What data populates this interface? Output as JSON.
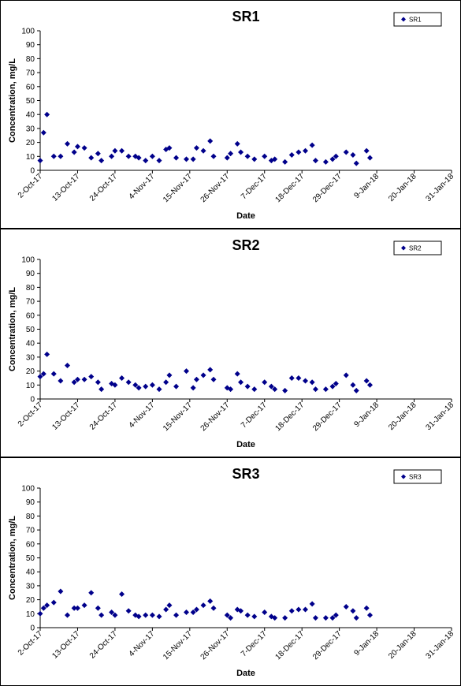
{
  "colors": {
    "marker": "#00008B",
    "axis": "#000000",
    "background": "#FFFFFF"
  },
  "chart_data": [
    {
      "type": "scatter",
      "title": "SR1",
      "xlabel": "Date",
      "ylabel": "Concentration, mg/L",
      "ylim": [
        0,
        100
      ],
      "yticks": [
        "0",
        "10",
        "20",
        "30",
        "40",
        "50",
        "60",
        "70",
        "80",
        "90",
        "100"
      ],
      "xlim": [
        "2017-10-02",
        "2018-01-31"
      ],
      "xticks": [
        "2-Oct-17",
        "13-Oct-17",
        "24-Oct-17",
        "4-Nov-17",
        "15-Nov-17",
        "26-Nov-17",
        "7-Dec-17",
        "18-Dec-17",
        "29-Dec-17",
        "9-Jan-18",
        "20-Jan-18",
        "31-Jan-18"
      ],
      "grid": false,
      "legend_position": "top-right",
      "series": [
        {
          "name": "SR1",
          "marker": "diamond",
          "points": [
            [
              "2017-10-02",
              7
            ],
            [
              "2017-10-03",
              27
            ],
            [
              "2017-10-04",
              40
            ],
            [
              "2017-10-06",
              10
            ],
            [
              "2017-10-08",
              10
            ],
            [
              "2017-10-10",
              19
            ],
            [
              "2017-10-12",
              13
            ],
            [
              "2017-10-13",
              17
            ],
            [
              "2017-10-15",
              16
            ],
            [
              "2017-10-17",
              9
            ],
            [
              "2017-10-19",
              12
            ],
            [
              "2017-10-20",
              7
            ],
            [
              "2017-10-23",
              10
            ],
            [
              "2017-10-24",
              14
            ],
            [
              "2017-10-26",
              14
            ],
            [
              "2017-10-28",
              10
            ],
            [
              "2017-10-30",
              10
            ],
            [
              "2017-10-31",
              9
            ],
            [
              "2017-11-02",
              7
            ],
            [
              "2017-11-04",
              10
            ],
            [
              "2017-11-06",
              7
            ],
            [
              "2017-11-08",
              15
            ],
            [
              "2017-11-09",
              16
            ],
            [
              "2017-11-11",
              9
            ],
            [
              "2017-11-14",
              8
            ],
            [
              "2017-11-16",
              8
            ],
            [
              "2017-11-17",
              16
            ],
            [
              "2017-11-19",
              14
            ],
            [
              "2017-11-21",
              21
            ],
            [
              "2017-11-22",
              10
            ],
            [
              "2017-11-26",
              9
            ],
            [
              "2017-11-27",
              12
            ],
            [
              "2017-11-29",
              19
            ],
            [
              "2017-11-30",
              13
            ],
            [
              "2017-12-02",
              10
            ],
            [
              "2017-12-04",
              8
            ],
            [
              "2017-12-07",
              10
            ],
            [
              "2017-12-09",
              7
            ],
            [
              "2017-12-10",
              8
            ],
            [
              "2017-12-13",
              6
            ],
            [
              "2017-12-15",
              11
            ],
            [
              "2017-12-17",
              13
            ],
            [
              "2017-12-19",
              14
            ],
            [
              "2017-12-21",
              18
            ],
            [
              "2017-12-22",
              7
            ],
            [
              "2017-12-25",
              6
            ],
            [
              "2017-12-27",
              8
            ],
            [
              "2017-12-28",
              10
            ],
            [
              "2017-12-31",
              13
            ],
            [
              "2018-01-02",
              11
            ],
            [
              "2018-01-03",
              5
            ],
            [
              "2018-01-06",
              14
            ],
            [
              "2018-01-07",
              9
            ]
          ]
        }
      ]
    },
    {
      "type": "scatter",
      "title": "SR2",
      "xlabel": "Date",
      "ylabel": "Concentration, mg/L",
      "ylim": [
        0,
        100
      ],
      "yticks": [
        "0",
        "10",
        "20",
        "30",
        "40",
        "50",
        "60",
        "70",
        "80",
        "90",
        "100"
      ],
      "xlim": [
        "2017-10-02",
        "2018-01-31"
      ],
      "xticks": [
        "2-Oct-17",
        "13-Oct-17",
        "24-Oct-17",
        "4-Nov-17",
        "15-Nov-17",
        "26-Nov-17",
        "7-Dec-17",
        "18-Dec-17",
        "29-Dec-17",
        "9-Jan-18",
        "20-Jan-18",
        "31-Jan-18"
      ],
      "grid": false,
      "legend_position": "top-right",
      "series": [
        {
          "name": "SR2",
          "marker": "diamond",
          "points": [
            [
              "2017-10-02",
              16
            ],
            [
              "2017-10-03",
              18
            ],
            [
              "2017-10-04",
              32
            ],
            [
              "2017-10-06",
              18
            ],
            [
              "2017-10-08",
              13
            ],
            [
              "2017-10-10",
              24
            ],
            [
              "2017-10-12",
              12
            ],
            [
              "2017-10-13",
              14
            ],
            [
              "2017-10-15",
              14
            ],
            [
              "2017-10-17",
              16
            ],
            [
              "2017-10-19",
              12
            ],
            [
              "2017-10-20",
              7
            ],
            [
              "2017-10-23",
              11
            ],
            [
              "2017-10-24",
              10
            ],
            [
              "2017-10-26",
              15
            ],
            [
              "2017-10-28",
              12
            ],
            [
              "2017-10-30",
              10
            ],
            [
              "2017-10-31",
              8
            ],
            [
              "2017-11-02",
              9
            ],
            [
              "2017-11-04",
              10
            ],
            [
              "2017-11-06",
              7
            ],
            [
              "2017-11-08",
              12
            ],
            [
              "2017-11-09",
              17
            ],
            [
              "2017-11-11",
              9
            ],
            [
              "2017-11-14",
              20
            ],
            [
              "2017-11-16",
              8
            ],
            [
              "2017-11-17",
              14
            ],
            [
              "2017-11-19",
              17
            ],
            [
              "2017-11-21",
              21
            ],
            [
              "2017-11-22",
              14
            ],
            [
              "2017-11-26",
              8
            ],
            [
              "2017-11-27",
              7
            ],
            [
              "2017-11-29",
              18
            ],
            [
              "2017-11-30",
              12
            ],
            [
              "2017-12-02",
              9
            ],
            [
              "2017-12-04",
              7
            ],
            [
              "2017-12-07",
              12
            ],
            [
              "2017-12-09",
              9
            ],
            [
              "2017-12-10",
              7
            ],
            [
              "2017-12-13",
              6
            ],
            [
              "2017-12-15",
              15
            ],
            [
              "2017-12-17",
              15
            ],
            [
              "2017-12-19",
              13
            ],
            [
              "2017-12-21",
              12
            ],
            [
              "2017-12-22",
              7
            ],
            [
              "2017-12-25",
              7
            ],
            [
              "2017-12-27",
              9
            ],
            [
              "2017-12-28",
              11
            ],
            [
              "2017-12-31",
              17
            ],
            [
              "2018-01-02",
              10
            ],
            [
              "2018-01-03",
              6
            ],
            [
              "2018-01-06",
              13
            ],
            [
              "2018-01-07",
              10
            ]
          ]
        }
      ]
    },
    {
      "type": "scatter",
      "title": "SR3",
      "xlabel": "Date",
      "ylabel": "Concentration, mg/L",
      "ylim": [
        0,
        100
      ],
      "yticks": [
        "0",
        "10",
        "20",
        "30",
        "40",
        "50",
        "60",
        "70",
        "80",
        "90",
        "100"
      ],
      "xlim": [
        "2017-10-02",
        "2018-01-31"
      ],
      "xticks": [
        "2-Oct-17",
        "13-Oct-17",
        "24-Oct-17",
        "4-Nov-17",
        "15-Nov-17",
        "26-Nov-17",
        "7-Dec-17",
        "18-Dec-17",
        "29-Dec-17",
        "9-Jan-18",
        "20-Jan-18",
        "31-Jan-18"
      ],
      "grid": false,
      "legend_position": "top-right",
      "series": [
        {
          "name": "SR3",
          "marker": "diamond",
          "points": [
            [
              "2017-10-02",
              10
            ],
            [
              "2017-10-03",
              14
            ],
            [
              "2017-10-04",
              16
            ],
            [
              "2017-10-06",
              18
            ],
            [
              "2017-10-08",
              26
            ],
            [
              "2017-10-10",
              9
            ],
            [
              "2017-10-12",
              14
            ],
            [
              "2017-10-13",
              14
            ],
            [
              "2017-10-15",
              16
            ],
            [
              "2017-10-17",
              25
            ],
            [
              "2017-10-19",
              14
            ],
            [
              "2017-10-20",
              9
            ],
            [
              "2017-10-23",
              11
            ],
            [
              "2017-10-24",
              9
            ],
            [
              "2017-10-26",
              24
            ],
            [
              "2017-10-28",
              12
            ],
            [
              "2017-10-30",
              9
            ],
            [
              "2017-10-31",
              8
            ],
            [
              "2017-11-02",
              9
            ],
            [
              "2017-11-04",
              9
            ],
            [
              "2017-11-06",
              8
            ],
            [
              "2017-11-08",
              13
            ],
            [
              "2017-11-09",
              16
            ],
            [
              "2017-11-11",
              9
            ],
            [
              "2017-11-14",
              11
            ],
            [
              "2017-11-16",
              11
            ],
            [
              "2017-11-17",
              13
            ],
            [
              "2017-11-19",
              16
            ],
            [
              "2017-11-21",
              19
            ],
            [
              "2017-11-22",
              14
            ],
            [
              "2017-11-26",
              9
            ],
            [
              "2017-11-27",
              7
            ],
            [
              "2017-11-29",
              13
            ],
            [
              "2017-11-30",
              12
            ],
            [
              "2017-12-02",
              9
            ],
            [
              "2017-12-04",
              8
            ],
            [
              "2017-12-07",
              11
            ],
            [
              "2017-12-09",
              8
            ],
            [
              "2017-12-10",
              7
            ],
            [
              "2017-12-13",
              7
            ],
            [
              "2017-12-15",
              12
            ],
            [
              "2017-12-17",
              13
            ],
            [
              "2017-12-19",
              13
            ],
            [
              "2017-12-21",
              17
            ],
            [
              "2017-12-22",
              7
            ],
            [
              "2017-12-25",
              7
            ],
            [
              "2017-12-27",
              7
            ],
            [
              "2017-12-28",
              9
            ],
            [
              "2017-12-31",
              15
            ],
            [
              "2018-01-02",
              12
            ],
            [
              "2018-01-03",
              7
            ],
            [
              "2018-01-06",
              14
            ],
            [
              "2018-01-07",
              9
            ]
          ]
        }
      ]
    }
  ]
}
